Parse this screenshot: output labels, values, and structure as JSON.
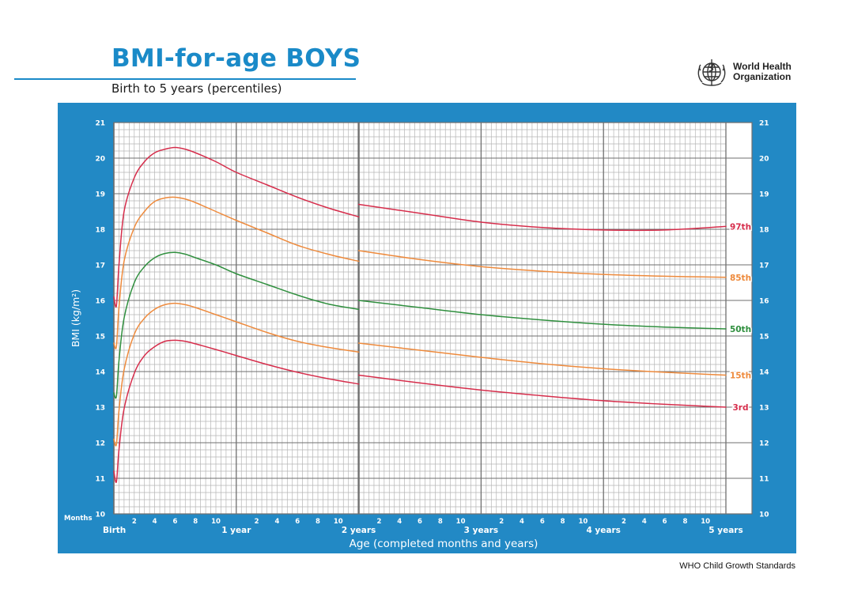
{
  "header": {
    "title": "BMI-for-age BOYS",
    "subtitle": "Birth to 5 years (percentiles)",
    "title_color": "#1a8ac8"
  },
  "logo": {
    "icon": "who-emblem-icon",
    "name_line1": "World Health",
    "name_line2": "Organization"
  },
  "footer": {
    "text": "WHO Child Growth Standards"
  },
  "colors": {
    "panel": "#2289c5",
    "grid_minor": "#b5b5b5",
    "grid_major": "#6f6f6f",
    "p97": "#d62d4b",
    "p85": "#ee8a3c",
    "p50": "#2f8f3e",
    "p15": "#ee8a3c",
    "p3": "#d62d4b"
  },
  "chart_data": {
    "type": "line",
    "title": "BMI-for-age BOYS",
    "subtitle": "Birth to 5 years (percentiles)",
    "xlabel": "Age (completed months and years)",
    "ylabel": "BMI (kg/m²)",
    "x_unit": "months",
    "xlim": [
      0,
      60
    ],
    "ylim": [
      10,
      21
    ],
    "y_ticks": [
      10,
      11,
      12,
      13,
      14,
      15,
      16,
      17,
      18,
      19,
      20,
      21
    ],
    "grid": true,
    "months_label": "Months",
    "month_ticks": [
      "2",
      "4",
      "6",
      "8",
      "10"
    ],
    "year_ticks": [
      {
        "month": 0,
        "label": "Birth"
      },
      {
        "month": 12,
        "label": "1 year"
      },
      {
        "month": 24,
        "label": "2 years"
      },
      {
        "month": 36,
        "label": "3 years"
      },
      {
        "month": 48,
        "label": "4 years"
      },
      {
        "month": 60,
        "label": "5 years"
      }
    ],
    "break_at_month": 24,
    "series": [
      {
        "name": "97th",
        "color_key": "p97",
        "segments": [
          [
            [
              0,
              16.1
            ],
            [
              0.25,
              15.85
            ],
            [
              0.5,
              17.0
            ],
            [
              1,
              18.5
            ],
            [
              2,
              19.45
            ],
            [
              3,
              19.9
            ],
            [
              4,
              20.15
            ],
            [
              5,
              20.25
            ],
            [
              6,
              20.3
            ],
            [
              7,
              20.25
            ],
            [
              8,
              20.15
            ],
            [
              10,
              19.9
            ],
            [
              12,
              19.6
            ],
            [
              15,
              19.25
            ],
            [
              18,
              18.9
            ],
            [
              21,
              18.6
            ],
            [
              24,
              18.35
            ]
          ],
          [
            [
              24,
              18.7
            ],
            [
              30,
              18.45
            ],
            [
              36,
              18.2
            ],
            [
              42,
              18.05
            ],
            [
              48,
              17.98
            ],
            [
              54,
              17.98
            ],
            [
              60,
              18.08
            ]
          ]
        ]
      },
      {
        "name": "85th",
        "color_key": "p85",
        "segments": [
          [
            [
              0,
              14.8
            ],
            [
              0.25,
              14.7
            ],
            [
              0.5,
              15.8
            ],
            [
              1,
              17.1
            ],
            [
              2,
              18.05
            ],
            [
              3,
              18.5
            ],
            [
              4,
              18.78
            ],
            [
              5,
              18.88
            ],
            [
              6,
              18.9
            ],
            [
              7,
              18.85
            ],
            [
              8,
              18.75
            ],
            [
              10,
              18.5
            ],
            [
              12,
              18.25
            ],
            [
              15,
              17.9
            ],
            [
              18,
              17.55
            ],
            [
              21,
              17.3
            ],
            [
              24,
              17.1
            ]
          ],
          [
            [
              24,
              17.4
            ],
            [
              30,
              17.15
            ],
            [
              36,
              16.95
            ],
            [
              42,
              16.82
            ],
            [
              48,
              16.73
            ],
            [
              54,
              16.68
            ],
            [
              60,
              16.65
            ]
          ]
        ]
      },
      {
        "name": "50th",
        "color_key": "p50",
        "segments": [
          [
            [
              0,
              13.4
            ],
            [
              0.25,
              13.3
            ],
            [
              0.5,
              14.3
            ],
            [
              1,
              15.5
            ],
            [
              2,
              16.5
            ],
            [
              3,
              16.95
            ],
            [
              4,
              17.2
            ],
            [
              5,
              17.32
            ],
            [
              6,
              17.35
            ],
            [
              7,
              17.3
            ],
            [
              8,
              17.2
            ],
            [
              10,
              17.0
            ],
            [
              12,
              16.75
            ],
            [
              15,
              16.45
            ],
            [
              18,
              16.15
            ],
            [
              21,
              15.9
            ],
            [
              24,
              15.75
            ]
          ],
          [
            [
              24,
              16.0
            ],
            [
              30,
              15.8
            ],
            [
              36,
              15.6
            ],
            [
              42,
              15.45
            ],
            [
              48,
              15.33
            ],
            [
              54,
              15.25
            ],
            [
              60,
              15.2
            ]
          ]
        ]
      },
      {
        "name": "15th",
        "color_key": "p15",
        "segments": [
          [
            [
              0,
              12.1
            ],
            [
              0.25,
              11.95
            ],
            [
              0.5,
              12.9
            ],
            [
              1,
              14.05
            ],
            [
              2,
              15.05
            ],
            [
              3,
              15.5
            ],
            [
              4,
              15.75
            ],
            [
              5,
              15.88
            ],
            [
              6,
              15.92
            ],
            [
              7,
              15.88
            ],
            [
              8,
              15.8
            ],
            [
              10,
              15.6
            ],
            [
              12,
              15.4
            ],
            [
              15,
              15.1
            ],
            [
              18,
              14.85
            ],
            [
              21,
              14.68
            ],
            [
              24,
              14.55
            ]
          ],
          [
            [
              24,
              14.8
            ],
            [
              30,
              14.6
            ],
            [
              36,
              14.4
            ],
            [
              42,
              14.22
            ],
            [
              48,
              14.08
            ],
            [
              54,
              13.98
            ],
            [
              60,
              13.9
            ]
          ]
        ]
      },
      {
        "name": "3rd",
        "color_key": "p3",
        "segments": [
          [
            [
              0,
              11.2
            ],
            [
              0.25,
              10.9
            ],
            [
              0.5,
              11.8
            ],
            [
              1,
              12.95
            ],
            [
              2,
              13.95
            ],
            [
              3,
              14.45
            ],
            [
              4,
              14.7
            ],
            [
              5,
              14.85
            ],
            [
              6,
              14.88
            ],
            [
              7,
              14.85
            ],
            [
              8,
              14.78
            ],
            [
              10,
              14.62
            ],
            [
              12,
              14.45
            ],
            [
              15,
              14.2
            ],
            [
              18,
              13.98
            ],
            [
              21,
              13.8
            ],
            [
              24,
              13.65
            ]
          ],
          [
            [
              24,
              13.9
            ],
            [
              30,
              13.68
            ],
            [
              36,
              13.48
            ],
            [
              42,
              13.32
            ],
            [
              48,
              13.18
            ],
            [
              54,
              13.08
            ],
            [
              60,
              13.0
            ]
          ]
        ]
      }
    ]
  }
}
